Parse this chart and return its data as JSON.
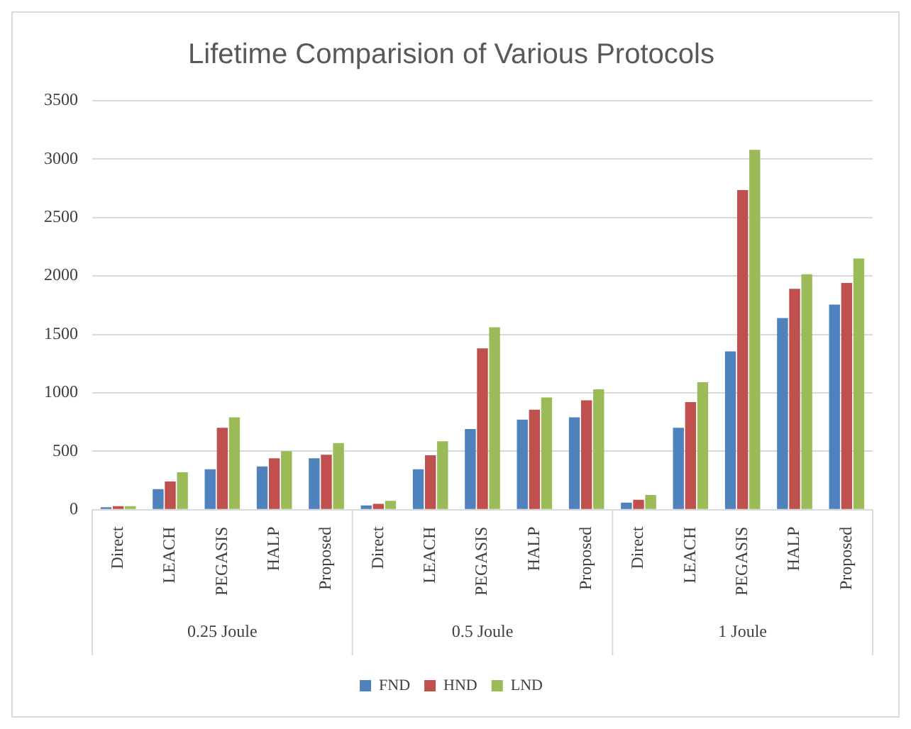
{
  "chart_data": {
    "type": "bar",
    "title": "Lifetime Comparision of Various Protocols",
    "categories": [
      "Direct",
      "LEACH",
      "PEGASIS",
      "HALP",
      "Proposed",
      "Direct",
      "LEACH",
      "PEGASIS",
      "HALP",
      "Proposed",
      "Direct",
      "LEACH",
      "PEGASIS",
      "HALP",
      "Proposed"
    ],
    "series": [
      {
        "name": "FND",
        "color": "#4f81bd",
        "values": [
          20,
          175,
          345,
          370,
          440,
          35,
          345,
          690,
          770,
          790,
          60,
          700,
          1355,
          1640,
          1755
        ]
      },
      {
        "name": "HND",
        "color": "#c0504d",
        "values": [
          30,
          240,
          700,
          440,
          470,
          50,
          465,
          1380,
          855,
          935,
          85,
          920,
          2735,
          1890,
          1940
        ]
      },
      {
        "name": "LND",
        "color": "#9bbb59",
        "values": [
          30,
          320,
          790,
          500,
          570,
          75,
          585,
          1560,
          960,
          1030,
          125,
          1090,
          3080,
          2015,
          2150
        ]
      }
    ],
    "annotations": [
      "0.25 Joule",
      "0.5 Joule",
      "1 Joule"
    ],
    "ylim": [
      0,
      3500
    ],
    "yticks": [
      0,
      500,
      1000,
      1500,
      2000,
      2500,
      3000,
      3500
    ],
    "grid": "y",
    "legend": "bottom"
  }
}
